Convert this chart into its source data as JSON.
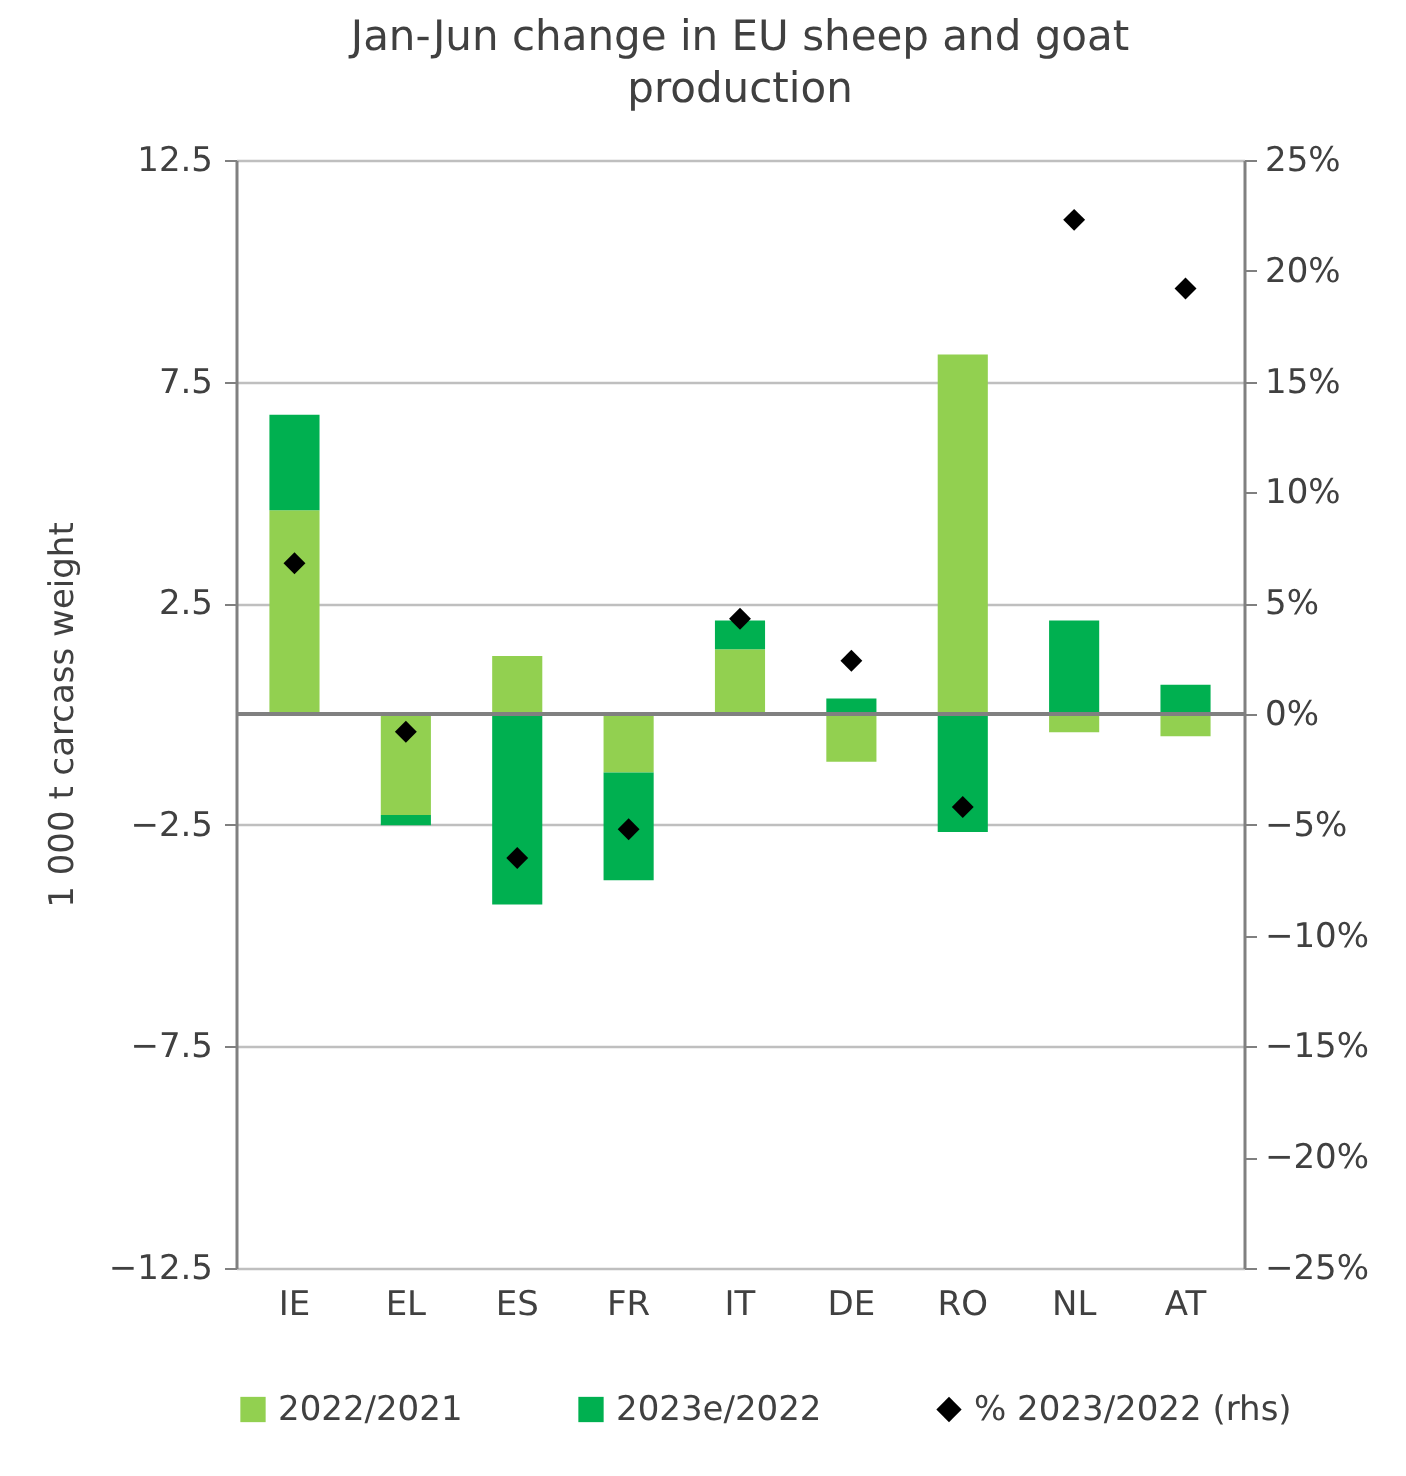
{
  "chart_data": {
    "type": "bar",
    "title": "Jan-Jun change in EU sheep and goat production",
    "ylabel": "1 000 t carcass weight",
    "categories": [
      "IE",
      "EL",
      "ES",
      "FR",
      "IT",
      "DE",
      "RO",
      "NL",
      "AT"
    ],
    "stacked": true,
    "series": [
      {
        "name": "2022/2021",
        "color": "#92d050",
        "values": [
          4.6,
          -2.28,
          1.31,
          -1.32,
          1.46,
          -1.08,
          8.11,
          -0.41,
          -0.5
        ]
      },
      {
        "name": "2023e/2022",
        "color": "#00b050",
        "values": [
          2.15,
          -0.23,
          -4.3,
          -2.43,
          0.65,
          0.35,
          -2.66,
          2.11,
          0.66
        ]
      },
      {
        "name": "% 2023/2022 (rhs)",
        "type": "scatter",
        "axis": "y2",
        "color": "#000000",
        "values": [
          6.8,
          -0.8,
          -6.5,
          -5.2,
          4.3,
          2.4,
          -4.2,
          22.3,
          19.2
        ]
      }
    ],
    "ylim": [
      -12.5,
      12.5
    ],
    "yticks": [
      -12.5,
      -7.5,
      -2.5,
      2.5,
      7.5,
      12.5
    ],
    "y2lim": [
      -25,
      25
    ],
    "y2ticks": [
      {
        "value": -25,
        "label": "−25%"
      },
      {
        "value": -20,
        "label": "−20%"
      },
      {
        "value": -15,
        "label": "−15%"
      },
      {
        "value": -10,
        "label": "−10%"
      },
      {
        "value": -5,
        "label": "−5%"
      },
      {
        "value": 0,
        "label": "0%"
      },
      {
        "value": 5,
        "label": "5%"
      },
      {
        "value": 10,
        "label": "10%"
      },
      {
        "value": 15,
        "label": "15%"
      },
      {
        "value": 20,
        "label": "20%"
      },
      {
        "value": 25,
        "label": "25%"
      }
    ],
    "grid": "y",
    "legend": "bottom",
    "marker": "diamond"
  }
}
